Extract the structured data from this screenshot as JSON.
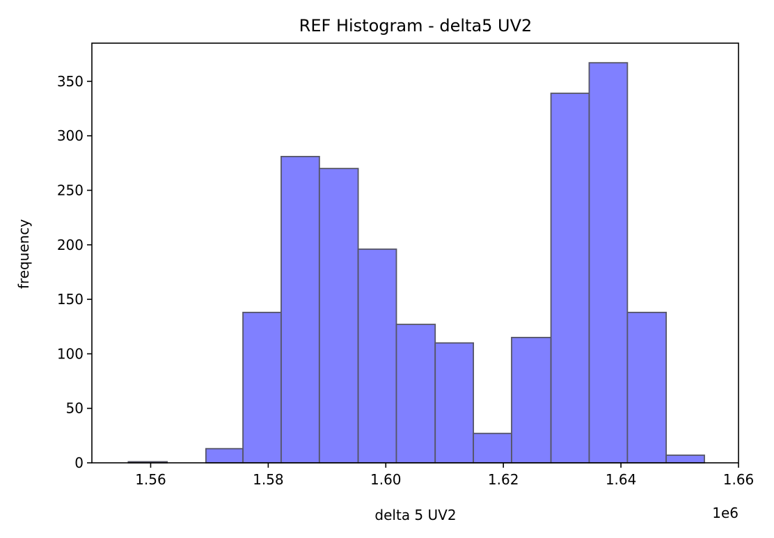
{
  "chart_data": {
    "type": "bar",
    "title": "REF Histogram - delta5 UV2",
    "xlabel": "delta 5 UV2",
    "ylabel": "frequency",
    "x_offset_label": "1e6",
    "xlim": [
      1.55,
      1.66
    ],
    "ylim": [
      0,
      385
    ],
    "xticks": [
      1.56,
      1.58,
      1.6,
      1.62,
      1.64,
      1.66
    ],
    "xtick_labels": [
      "1.56",
      "1.58",
      "1.60",
      "1.62",
      "1.64",
      "1.66"
    ],
    "yticks": [
      0,
      50,
      100,
      150,
      200,
      250,
      300,
      350
    ],
    "ytick_labels": [
      "0",
      "50",
      "100",
      "150",
      "200",
      "250",
      "300",
      "350"
    ],
    "bin_edges": [
      1.5562,
      1.5628,
      1.5694,
      1.5757,
      1.5822,
      1.5887,
      1.5953,
      1.6018,
      1.6084,
      1.6149,
      1.6214,
      1.6281,
      1.6346,
      1.6411,
      1.6477,
      1.6542
    ],
    "values": [
      1,
      0,
      13,
      138,
      281,
      270,
      196,
      127,
      110,
      27,
      115,
      339,
      367,
      138,
      7
    ],
    "grid": false,
    "colors": {
      "fill": "#8080ff",
      "edge": "#555566"
    }
  }
}
